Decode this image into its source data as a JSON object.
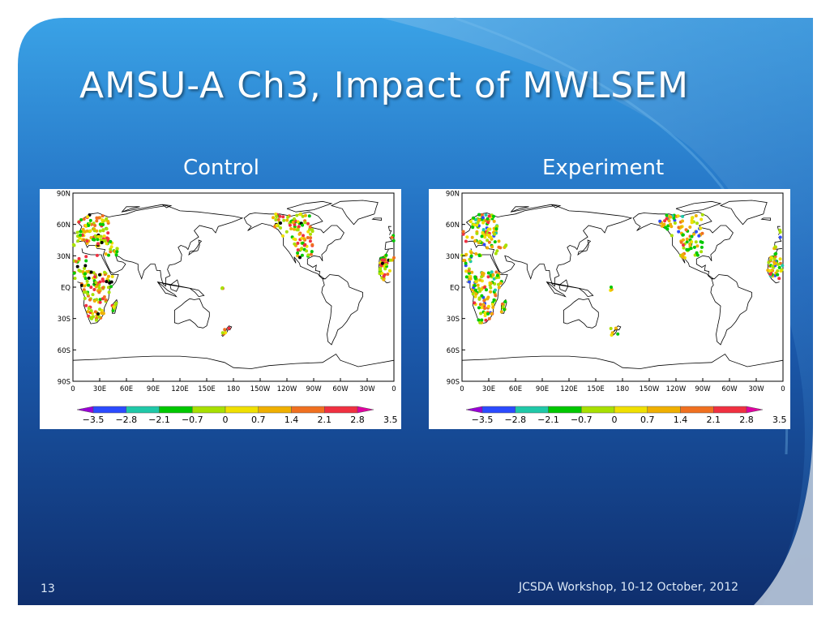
{
  "slide": {
    "title": "AMSU-A Ch3, Impact of MWLSEM",
    "page_number": "13",
    "footer": "JCSDA Workshop, 10-12 October, 2012"
  },
  "theme": {
    "background_dark": "#0d2a66",
    "background_mid": "#1e67c4",
    "background_light": "#3ba3e8",
    "wave_color": "#5aa8e0",
    "text_color": "#ffffff"
  },
  "chart_data": [
    {
      "type": "scatter",
      "title": "Control",
      "projection": "cylindrical",
      "x_ticks": [
        "0",
        "30E",
        "60E",
        "90E",
        "120E",
        "150E",
        "180",
        "150W",
        "120W",
        "90W",
        "60W",
        "30W",
        "0"
      ],
      "y_ticks": [
        "90N",
        "60N",
        "30N",
        "EQ",
        "30S",
        "60S",
        "90S"
      ],
      "colorbar": {
        "ticks": [
          "-3.5",
          "-2.8",
          "-2.1",
          "-0.7",
          "0",
          "0.7",
          "1.4",
          "2.1",
          "2.8",
          "3.5"
        ],
        "colors": [
          "#9a00d6",
          "#2b4bff",
          "#1fc8a8",
          "#00c800",
          "#a8e000",
          "#f0e000",
          "#f0b000",
          "#f07020",
          "#f03040",
          "#e000a0"
        ]
      }
    },
    {
      "type": "scatter",
      "title": "Experiment",
      "projection": "cylindrical",
      "x_ticks": [
        "0",
        "30E",
        "60E",
        "90E",
        "120E",
        "150E",
        "180",
        "150W",
        "120W",
        "90W",
        "60W",
        "30W",
        "0"
      ],
      "y_ticks": [
        "90N",
        "60N",
        "30N",
        "EQ",
        "30S",
        "60S",
        "90S"
      ],
      "colorbar": {
        "ticks": [
          "-3.5",
          "-2.8",
          "-2.1",
          "-0.7",
          "0",
          "0.7",
          "1.4",
          "2.1",
          "2.8",
          "3.5"
        ],
        "colors": [
          "#9a00d6",
          "#2b4bff",
          "#1fc8a8",
          "#00c800",
          "#a8e000",
          "#f0e000",
          "#f0b000",
          "#f07020",
          "#f03040",
          "#e000a0"
        ]
      }
    }
  ]
}
